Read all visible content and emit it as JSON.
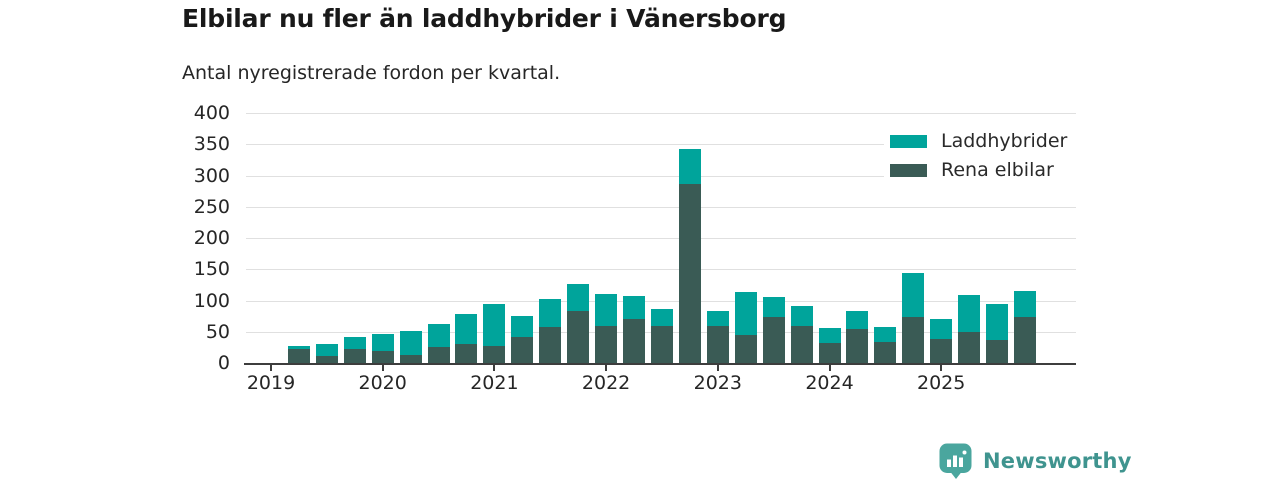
{
  "header": {
    "title": "Elbilar nu fler än laddhybrider i Vänersborg",
    "subtitle": "Antal nyregistrerade fordon per kvartal."
  },
  "branding": {
    "logo_text": "Newsworthy",
    "logo_icon": "newsworthy-speech-bubble-chart-icon",
    "logo_text_color": "#3f948f",
    "logo_icon_color": "#4aa69e"
  },
  "chart_data": {
    "type": "bar",
    "stacked": true,
    "title": "Elbilar nu fler än laddhybrider i Vänersborg",
    "subtitle": "Antal nyregistrerade fordon per kvartal.",
    "categories": [
      "2019Q1",
      "2019Q2",
      "2019Q3",
      "2019Q4",
      "2020Q1",
      "2020Q2",
      "2020Q3",
      "2020Q4",
      "2021Q1",
      "2021Q2",
      "2021Q3",
      "2021Q4",
      "2022Q1",
      "2022Q2",
      "2022Q3",
      "2022Q4",
      "2023Q1",
      "2023Q2",
      "2023Q3",
      "2023Q4",
      "2024Q1",
      "2024Q2",
      "2024Q3",
      "2024Q4",
      "2025Q1",
      "2025Q2",
      "2025Q3",
      "2025Q4"
    ],
    "series": [
      {
        "name": "Laddhybrider",
        "color": "#00a49b",
        "values": [
          0,
          4,
          18,
          20,
          27,
          39,
          38,
          48,
          67,
          33,
          45,
          43,
          50,
          37,
          26,
          55,
          23,
          68,
          33,
          32,
          24,
          29,
          23,
          71,
          31,
          59,
          57,
          42
        ]
      },
      {
        "name": "Rena elbilar",
        "color": "#3a5b55",
        "values": [
          0,
          23,
          12,
          22,
          19,
          13,
          25,
          30,
          27,
          42,
          58,
          84,
          60,
          70,
          60,
          287,
          60,
          45,
          73,
          59,
          32,
          55,
          34,
          73,
          39,
          50,
          37,
          73
        ]
      }
    ],
    "stack_bottom_series": "Rena elbilar",
    "ylim": [
      0,
      400
    ],
    "yticks": [
      0,
      50,
      100,
      150,
      200,
      250,
      300,
      350,
      400
    ],
    "x_tick_labels": [
      "2019",
      "2020",
      "2021",
      "2022",
      "2023",
      "2024",
      "2025"
    ],
    "grid": "horizontal",
    "legend_position": "top-right",
    "axis_color": "#3d3d3d",
    "gridline_color": "#e0e0e0"
  }
}
